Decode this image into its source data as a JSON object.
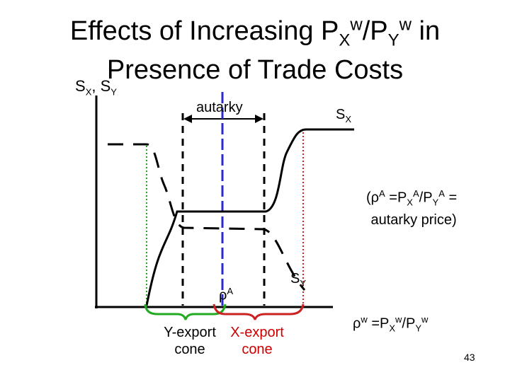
{
  "title": {
    "line1_prefix": "Effects of Increasing P",
    "sub_x": "X",
    "sup_w1": "w",
    "slash": "/P",
    "sub_y": "Y",
    "sup_w2": "w",
    "line1_suffix": " in",
    "line2": "Presence of Trade Costs"
  },
  "y_axis_label": {
    "s1": "S",
    "sub1": "X",
    "comma": ", ",
    "s2": "S",
    "sub2": "Y"
  },
  "labels": {
    "autarky": "autarky",
    "sx": {
      "main": "S",
      "sub": "X"
    },
    "sy": {
      "main": "S",
      "sub": "Y"
    },
    "rho_a": {
      "main": "ρ",
      "sup": "A"
    },
    "autarky_price": {
      "open": "(ρ",
      "sup_a": "A",
      "eq": " =P",
      "sub_x": "X",
      "sup_a2": "A",
      "slash": "/P",
      "sub_y": "Y",
      "sup_a3": "A",
      "close": " =",
      "line2": "autarky price)"
    },
    "rho_w": {
      "main": "ρ",
      "sup_w": "w",
      "eq": " =P",
      "sub_x": "X",
      "sup_w2": "w",
      "slash": "/P",
      "sub_y": "Y",
      "sup_w3": "w"
    },
    "y_export": {
      "line1": "Y-export",
      "line2": "cone",
      "color": "#007a00"
    },
    "x_export": {
      "line1": "X-export",
      "line2": "cone",
      "color": "#cc0000"
    }
  },
  "colors": {
    "axis": "#000000",
    "blue_line": "#2a2ad4",
    "green": "#22aa22",
    "red": "#cc2222"
  },
  "page_number": "43"
}
